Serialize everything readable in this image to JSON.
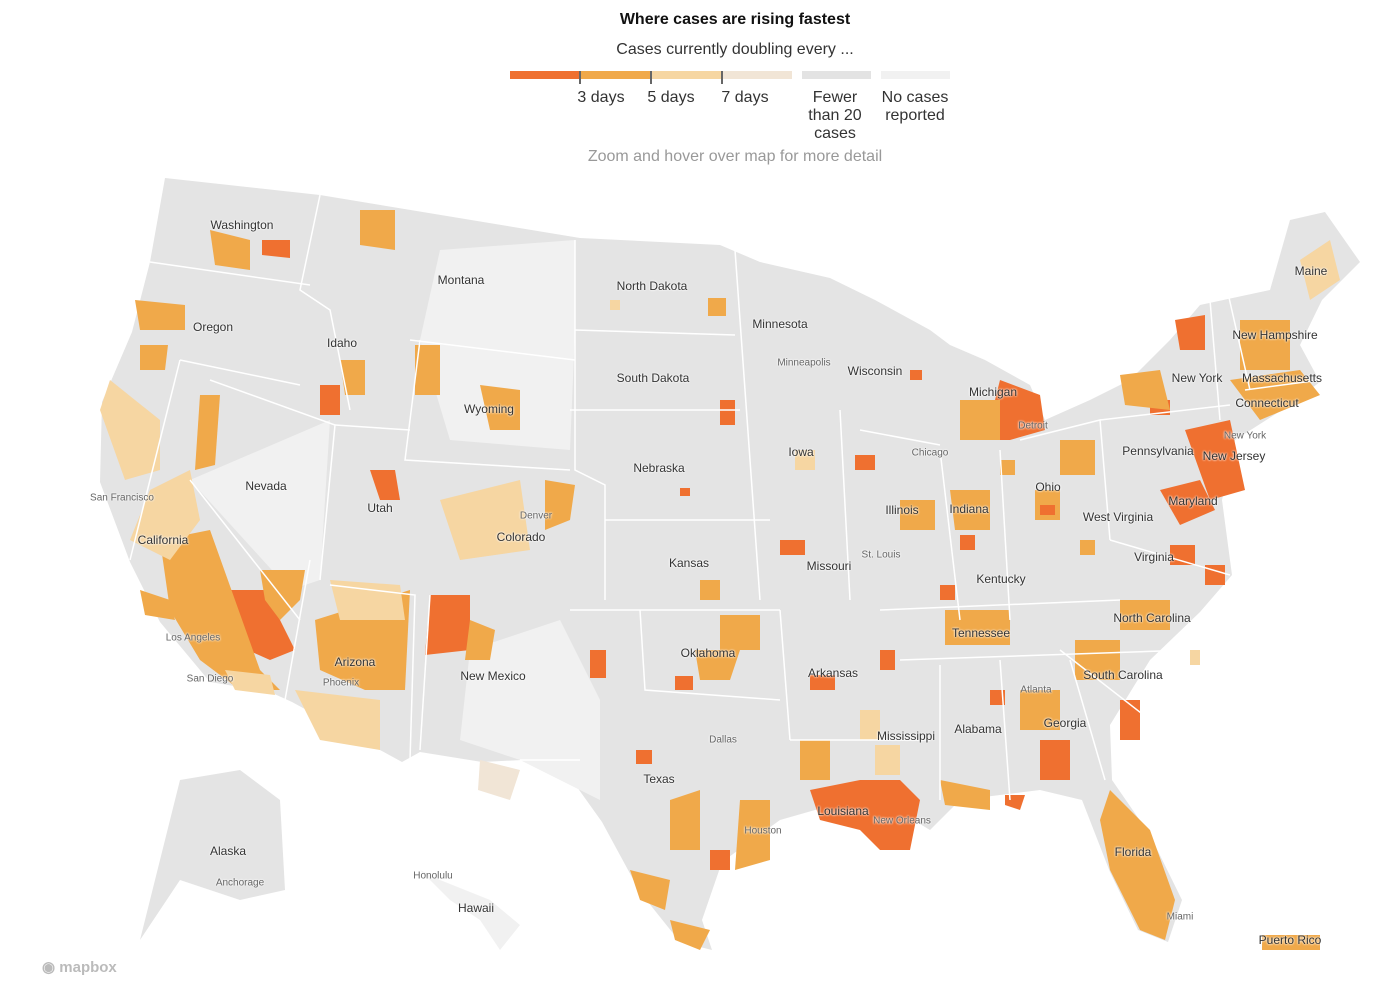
{
  "header": {
    "title": "Where cases are rising fastest",
    "subtitle": "Cases currently doubling every ...",
    "hint": "Zoom and hover over map for more detail"
  },
  "legend": {
    "scale": [
      {
        "color": "#ef7030"
      },
      {
        "color": "#f0a94a"
      },
      {
        "color": "#f6d6a2"
      },
      {
        "color": "#f1e5d6"
      }
    ],
    "ticks": [
      "3 days",
      "5 days",
      "7 days"
    ],
    "fewer": {
      "label": "Fewer than 20 cases",
      "color": "#e3e3e3"
    },
    "none": {
      "label": "No cases reported",
      "color": "#f1f1f1"
    }
  },
  "map": {
    "states": [
      "Washington",
      "Oregon",
      "California",
      "Nevada",
      "Idaho",
      "Montana",
      "Wyoming",
      "Utah",
      "Colorado",
      "Arizona",
      "New Mexico",
      "North Dakota",
      "South Dakota",
      "Nebraska",
      "Kansas",
      "Oklahoma",
      "Texas",
      "Minnesota",
      "Iowa",
      "Missouri",
      "Arkansas",
      "Louisiana",
      "Wisconsin",
      "Illinois",
      "Michigan",
      "Indiana",
      "Ohio",
      "Kentucky",
      "Tennessee",
      "Mississippi",
      "Alabama",
      "Georgia",
      "Florida",
      "South Carolina",
      "North Carolina",
      "Virginia",
      "West Virginia",
      "Pennsylvania",
      "New York",
      "Maryland",
      "New Jersey",
      "Connecticut",
      "Massachusetts",
      "New Hampshire",
      "Maine",
      "Alaska",
      "Hawaii",
      "Puerto Rico"
    ],
    "cities": [
      "San Francisco",
      "Los Angeles",
      "San Diego",
      "Phoenix",
      "Denver",
      "Minneapolis",
      "Chicago",
      "Detroit",
      "St. Louis",
      "Dallas",
      "Houston",
      "New Orleans",
      "Atlanta",
      "Miami",
      "New York",
      "Anchorage",
      "Honolulu"
    ],
    "attribution": "mapbox"
  }
}
